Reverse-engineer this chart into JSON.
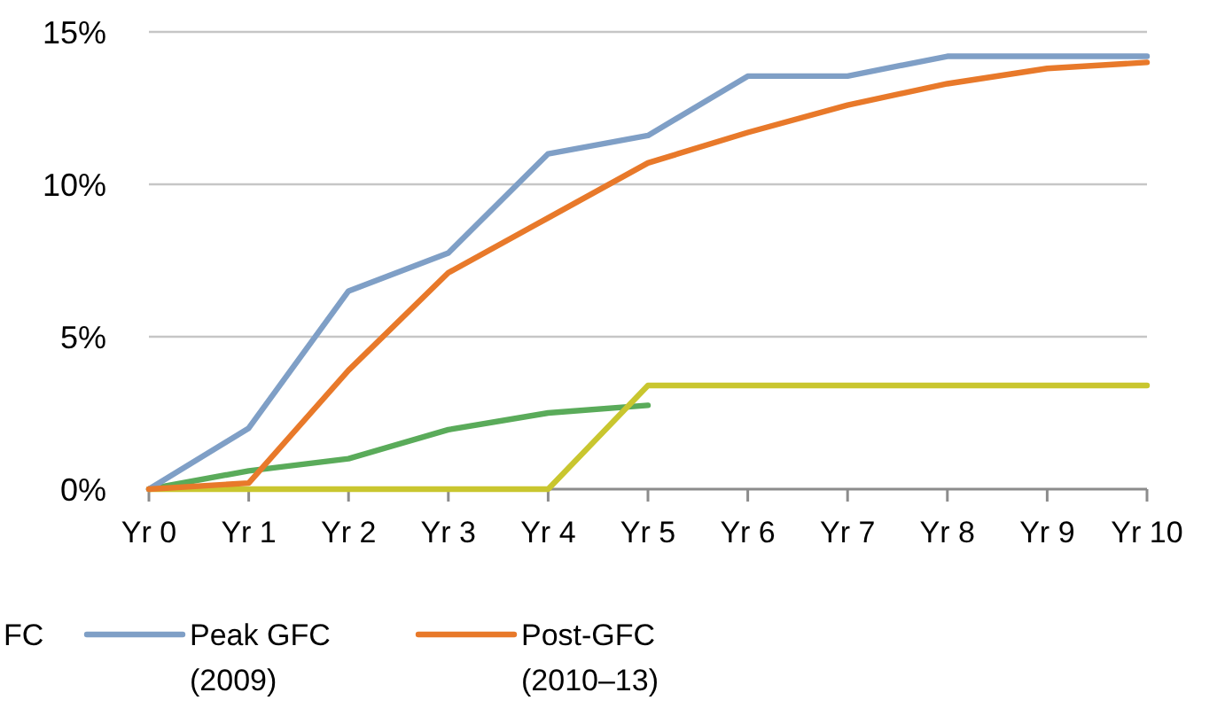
{
  "chart_data": {
    "type": "line",
    "categories": [
      "Yr 0",
      "Yr 1",
      "Yr 2",
      "Yr 3",
      "Yr 4",
      "Yr 5",
      "Yr 6",
      "Yr 7",
      "Yr 8",
      "Yr 9",
      "Yr 10"
    ],
    "series": [
      {
        "color": "#5aab5a",
        "values": [
          0,
          0.6,
          1.0,
          1.95,
          2.5,
          2.75,
          null,
          null,
          null,
          null,
          null
        ]
      },
      {
        "color": "#c9c62f",
        "values": [
          0,
          0,
          0,
          0,
          0,
          3.4,
          3.4,
          3.4,
          3.4,
          3.4,
          3.4
        ]
      },
      {
        "name": "Peak GFC (2009)",
        "color": "#7f9fc6",
        "values": [
          0,
          2.0,
          6.5,
          7.75,
          11.0,
          11.6,
          13.55,
          13.55,
          14.2,
          14.2,
          14.2
        ]
      },
      {
        "name": "Post-GFC (2010–13)",
        "color": "#e8792a",
        "values": [
          0,
          0.2,
          3.9,
          7.1,
          8.9,
          10.7,
          11.7,
          12.6,
          13.3,
          13.8,
          14.0
        ]
      }
    ],
    "ylim": [
      0,
      15
    ],
    "yticks": [
      {
        "value": 0,
        "label": "0%"
      },
      {
        "value": 5,
        "label": "5%"
      },
      {
        "value": 10,
        "label": "10%"
      },
      {
        "value": 15,
        "label": "15%"
      }
    ],
    "grid": "y",
    "legend": "bottom",
    "marker": "none",
    "line_style": "solid",
    "annotations": [
      "FC"
    ]
  }
}
